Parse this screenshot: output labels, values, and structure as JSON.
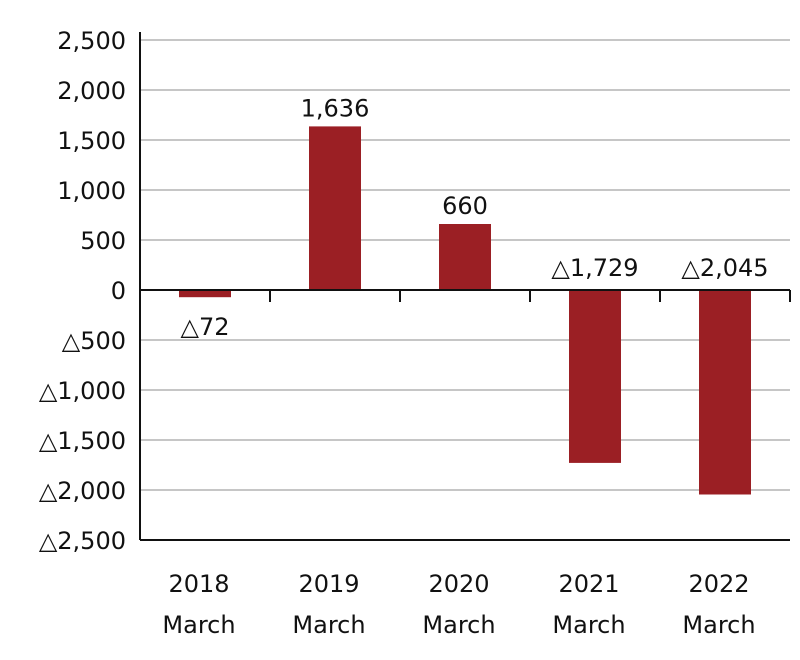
{
  "chart_data": {
    "type": "bar",
    "categories": [
      [
        "2018",
        "March"
      ],
      [
        "2019",
        "March"
      ],
      [
        "2020",
        "March"
      ],
      [
        "2021",
        "March"
      ],
      [
        "2022",
        "March"
      ]
    ],
    "values": [
      -72,
      1636,
      660,
      -1729,
      -2045
    ],
    "data_labels": [
      "△72",
      "1,636",
      "660",
      "△1,729",
      "△2,045"
    ],
    "y_ticks": [
      {
        "value": 2500,
        "label": "2,500"
      },
      {
        "value": 2000,
        "label": "2,000"
      },
      {
        "value": 1500,
        "label": "1,500"
      },
      {
        "value": 1000,
        "label": "1,000"
      },
      {
        "value": 500,
        "label": "500"
      },
      {
        "value": 0,
        "label": "0"
      },
      {
        "value": -500,
        "label": "△500"
      },
      {
        "value": -1000,
        "label": "△1,000"
      },
      {
        "value": -1500,
        "label": "△1,500"
      },
      {
        "value": -2000,
        "label": "△2,000"
      },
      {
        "value": -2500,
        "label": "△2,500"
      }
    ],
    "ylim": [
      -2500,
      2500
    ],
    "grid": true,
    "bar_color": "#9b1f24",
    "grid_color": "#b3b3b3",
    "title": "",
    "xlabel": "",
    "ylabel": ""
  }
}
